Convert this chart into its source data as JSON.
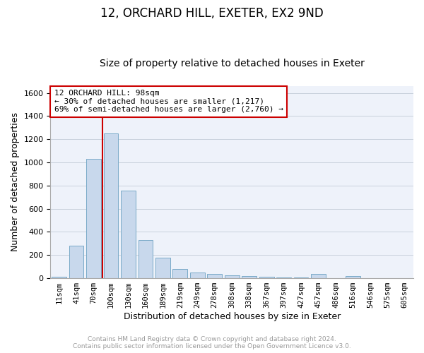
{
  "title1": "12, ORCHARD HILL, EXETER, EX2 9ND",
  "title2": "Size of property relative to detached houses in Exeter",
  "xlabel": "Distribution of detached houses by size in Exeter",
  "ylabel": "Number of detached properties",
  "categories": [
    "11sqm",
    "41sqm",
    "70sqm",
    "100sqm",
    "130sqm",
    "160sqm",
    "189sqm",
    "219sqm",
    "249sqm",
    "278sqm",
    "308sqm",
    "338sqm",
    "367sqm",
    "397sqm",
    "427sqm",
    "457sqm",
    "486sqm",
    "516sqm",
    "546sqm",
    "575sqm",
    "605sqm"
  ],
  "values": [
    10,
    280,
    1030,
    1248,
    758,
    330,
    180,
    82,
    50,
    35,
    27,
    20,
    15,
    8,
    8,
    35,
    2,
    20,
    3,
    0,
    0
  ],
  "bar_color": "#c8d8ec",
  "bar_edge_color": "#7aaac8",
  "line_color": "#cc0000",
  "line_x_index": 3,
  "ylim": [
    0,
    1660
  ],
  "yticks": [
    0,
    200,
    400,
    600,
    800,
    1000,
    1200,
    1400,
    1600
  ],
  "annotation_title": "12 ORCHARD HILL: 98sqm",
  "annotation_line1": "← 30% of detached houses are smaller (1,217)",
  "annotation_line2": "69% of semi-detached houses are larger (2,760) →",
  "annotation_box_color": "#ffffff",
  "annotation_box_edge": "#cc0000",
  "footer1": "Contains HM Land Registry data © Crown copyright and database right 2024.",
  "footer2": "Contains public sector information licensed under the Open Government Licence v3.0.",
  "bg_color": "#eef2fa",
  "grid_color": "#c8d0dc",
  "title1_fontsize": 12,
  "title2_fontsize": 10,
  "ylabel_fontsize": 9,
  "xlabel_fontsize": 9,
  "tick_fontsize": 7.5,
  "ytick_fontsize": 8,
  "ann_fontsize": 8,
  "footer_fontsize": 6.5
}
